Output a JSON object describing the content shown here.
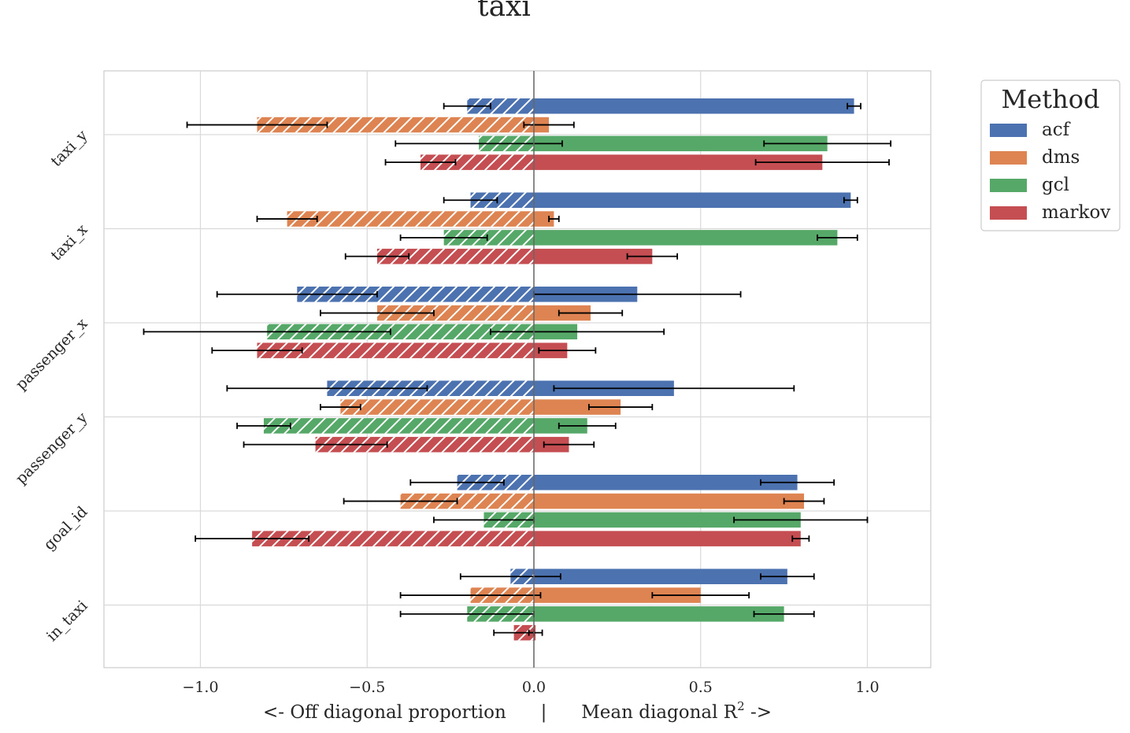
{
  "chart_data": {
    "type": "bar",
    "orientation": "horizontal",
    "title": "taxi",
    "xlabel": "<- Off diagonal proportion      |      Mean diagonal R",
    "xlabel_superscript": "2",
    "xlabel_suffix": " ->",
    "xlim": [
      -1.3,
      1.2
    ],
    "xticks": [
      -1.0,
      -0.5,
      0.0,
      0.5,
      1.0
    ],
    "xtick_labels": [
      "−1.0",
      "−0.5",
      "0.0",
      "0.5",
      "1.0"
    ],
    "grid": true,
    "categories": [
      "taxi_y",
      "taxi_x",
      "passenger_x",
      "passenger_y",
      "goal_id",
      "in_taxi"
    ],
    "legend": {
      "title": "Method",
      "placement": "outside-upper-right",
      "entries": [
        "acf",
        "dms",
        "gcl",
        "markov"
      ]
    },
    "colors": {
      "acf": "#4c72b0",
      "dms": "#dd8452",
      "gcl": "#55a868",
      "markov": "#c44e52"
    },
    "series": [
      {
        "name": "acf",
        "mean_diagonal_r2": [
          0.96,
          0.95,
          0.31,
          0.42,
          0.79,
          0.76
        ],
        "mean_diagonal_err": [
          0.02,
          0.02,
          0.31,
          0.36,
          0.11,
          0.08
        ],
        "off_diagonal_proportion": [
          -0.2,
          -0.19,
          -0.71,
          -0.62,
          -0.23,
          -0.07
        ],
        "off_diagonal_err": [
          0.07,
          0.08,
          0.24,
          0.3,
          0.14,
          0.15
        ]
      },
      {
        "name": "dms",
        "mean_diagonal_r2": [
          0.045,
          0.06,
          0.17,
          0.26,
          0.81,
          0.5
        ],
        "mean_diagonal_err": [
          0.075,
          0.015,
          0.095,
          0.095,
          0.06,
          0.145
        ],
        "off_diagonal_proportion": [
          -0.83,
          -0.74,
          -0.47,
          -0.58,
          -0.4,
          -0.19
        ],
        "off_diagonal_err": [
          0.21,
          0.09,
          0.17,
          0.06,
          0.17,
          0.21
        ]
      },
      {
        "name": "gcl",
        "mean_diagonal_r2": [
          0.88,
          0.91,
          0.13,
          0.16,
          0.8,
          0.75
        ],
        "mean_diagonal_err": [
          0.19,
          0.06,
          0.26,
          0.085,
          0.2,
          0.09
        ],
        "off_diagonal_proportion": [
          -0.165,
          -0.27,
          -0.8,
          -0.81,
          -0.15,
          -0.2
        ],
        "off_diagonal_err": [
          0.25,
          0.13,
          0.37,
          0.08,
          0.15,
          0.2
        ]
      },
      {
        "name": "markov",
        "mean_diagonal_r2": [
          0.865,
          0.355,
          0.1,
          0.105,
          0.8,
          0.005
        ],
        "mean_diagonal_err": [
          0.2,
          0.075,
          0.085,
          0.075,
          0.025,
          0.02
        ],
        "off_diagonal_proportion": [
          -0.34,
          -0.47,
          -0.83,
          -0.655,
          -0.845,
          -0.06
        ],
        "off_diagonal_err": [
          0.105,
          0.095,
          0.135,
          0.215,
          0.17,
          0.06
        ]
      }
    ]
  }
}
